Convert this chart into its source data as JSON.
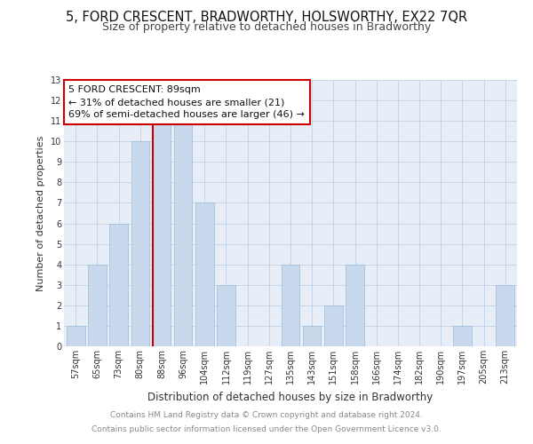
{
  "title": "5, FORD CRESCENT, BRADWORTHY, HOLSWORTHY, EX22 7QR",
  "subtitle": "Size of property relative to detached houses in Bradworthy",
  "xlabel": "Distribution of detached houses by size in Bradworthy",
  "ylabel": "Number of detached properties",
  "categories": [
    "57sqm",
    "65sqm",
    "73sqm",
    "80sqm",
    "88sqm",
    "96sqm",
    "104sqm",
    "112sqm",
    "119sqm",
    "127sqm",
    "135sqm",
    "143sqm",
    "151sqm",
    "158sqm",
    "166sqm",
    "174sqm",
    "182sqm",
    "190sqm",
    "197sqm",
    "205sqm",
    "213sqm"
  ],
  "values": [
    1,
    4,
    6,
    10,
    11,
    11,
    7,
    3,
    0,
    0,
    4,
    1,
    2,
    4,
    0,
    0,
    0,
    0,
    1,
    0,
    3
  ],
  "bar_color": "#c8d9ed",
  "bar_edge_color": "#9bbbd6",
  "red_line_index": 4,
  "bar_width": 0.85,
  "ylim": [
    0,
    13
  ],
  "yticks": [
    0,
    1,
    2,
    3,
    4,
    5,
    6,
    7,
    8,
    9,
    10,
    11,
    12,
    13
  ],
  "annotation_text_line1": "5 FORD CRESCENT: 89sqm",
  "annotation_text_line2": "← 31% of detached houses are smaller (21)",
  "annotation_text_line3": "69% of semi-detached houses are larger (46) →",
  "annotation_box_color": "#ffffff",
  "annotation_box_edge": "#cc0000",
  "footer_line1": "Contains HM Land Registry data © Crown copyright and database right 2024.",
  "footer_line2": "Contains public sector information licensed under the Open Government Licence v3.0.",
  "background_color": "#ffffff",
  "plot_bg_color": "#e8eef8",
  "grid_color": "#c8d4e8",
  "title_fontsize": 10.5,
  "subtitle_fontsize": 9,
  "xlabel_fontsize": 8.5,
  "ylabel_fontsize": 8,
  "tick_fontsize": 7,
  "footer_fontsize": 6.5,
  "annotation_fontsize": 8
}
